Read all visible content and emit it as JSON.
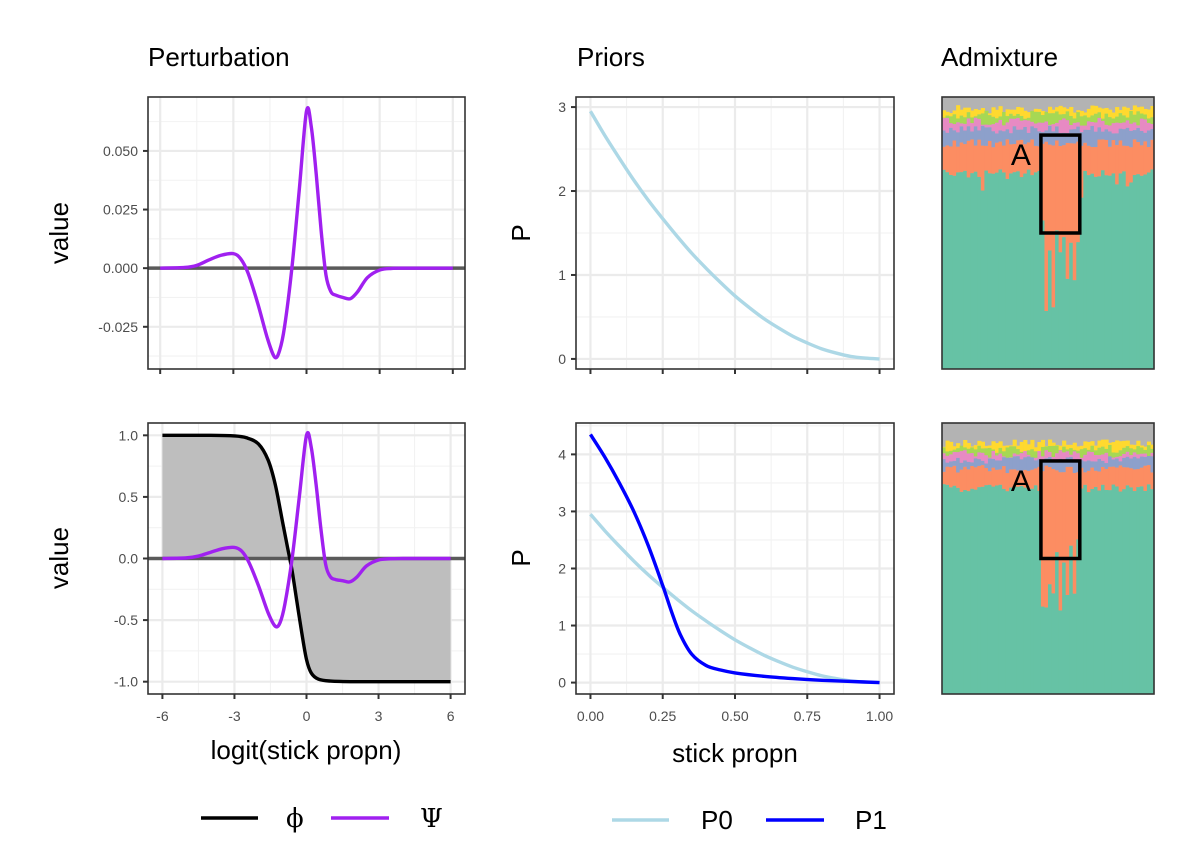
{
  "column_titles": {
    "perturbation": "Perturbation",
    "priors": "Priors",
    "admixture": "Admixture"
  },
  "axis_titles": {
    "value_top": "value",
    "value_bottom": "value",
    "p_top": "P",
    "p_bottom": "P",
    "x_left": "logit(stick propn)",
    "x_mid": "stick propn"
  },
  "legends": {
    "perturbation": [
      {
        "symbol": "ϕ",
        "color": "#000000"
      },
      {
        "symbol": "Ψ",
        "color": "#a020f0"
      }
    ],
    "priors": [
      {
        "label": "P0",
        "color": "#add8e6"
      },
      {
        "label": "P1",
        "color": "#0000ff"
      }
    ]
  },
  "annotation_label": "A",
  "chart_data": [
    {
      "id": "perturbation-top",
      "type": "line",
      "title": "",
      "xlabel": "",
      "ylabel": "value",
      "xlim": [
        -6.5,
        6.5
      ],
      "ylim": [
        -0.043,
        0.073
      ],
      "x_ticks": [
        -6,
        -3,
        0,
        3,
        6
      ],
      "x_tick_labels_shown": false,
      "y_ticks": [
        -0.025,
        0.0,
        0.025,
        0.05
      ],
      "y_tick_labels": [
        "-0.025",
        "0.000",
        "0.025",
        "0.050"
      ],
      "grid": true,
      "hline": 0,
      "series": [
        {
          "color": "#a020f0",
          "x": [
            -6,
            -5,
            -4.5,
            -4,
            -3.5,
            -3,
            -2.7,
            -2.4,
            -2,
            -1.6,
            -1.3,
            -1.1,
            -0.9,
            -0.6,
            -0.3,
            0,
            0.2,
            0.4,
            0.6,
            0.8,
            1.0,
            1.2,
            1.5,
            1.8,
            2.1,
            2.5,
            3,
            3.5,
            4,
            5,
            6
          ],
          "y": [
            0,
            0.0003,
            0.0012,
            0.0035,
            0.0055,
            0.0062,
            0.004,
            -0.002,
            -0.015,
            -0.03,
            -0.038,
            -0.035,
            -0.025,
            0.0,
            0.033,
            0.067,
            0.06,
            0.04,
            0.016,
            -0.003,
            -0.01,
            -0.0115,
            -0.0125,
            -0.013,
            -0.01,
            -0.004,
            -0.0008,
            -0.0001,
            0,
            0,
            0
          ]
        }
      ]
    },
    {
      "id": "perturbation-bottom",
      "type": "line",
      "title": "",
      "xlabel": "logit(stick propn)",
      "ylabel": "value",
      "xlim": [
        -6.6,
        6.6
      ],
      "ylim": [
        -1.1,
        1.1
      ],
      "x_ticks": [
        -6,
        -3,
        0,
        3,
        6
      ],
      "x_tick_labels": [
        "-6",
        "-3",
        "0",
        "3",
        "6"
      ],
      "y_ticks": [
        -1.0,
        -0.5,
        0.0,
        0.5,
        1.0
      ],
      "y_tick_labels": [
        "-1.0",
        "-0.5",
        "0.0",
        "0.5",
        "1.0"
      ],
      "grid": true,
      "hline": 0,
      "shaded_area": {
        "between": "phi_and_zero",
        "color": "#bebebe"
      },
      "series": [
        {
          "name": "ϕ",
          "color": "#000000",
          "x": [
            -6,
            -4,
            -3,
            -2.5,
            -2,
            -1.6,
            -1.3,
            -1.0,
            -0.8,
            -0.6,
            -0.4,
            -0.2,
            0,
            0.2,
            0.5,
            1.0,
            2,
            4,
            6
          ],
          "y": [
            1.0,
            1.0,
            0.995,
            0.98,
            0.93,
            0.8,
            0.6,
            0.3,
            0.1,
            -0.1,
            -0.35,
            -0.6,
            -0.82,
            -0.93,
            -0.98,
            -0.995,
            -1.0,
            -1.0,
            -1.0
          ]
        },
        {
          "name": "Ψ",
          "color": "#a020f0",
          "x": [
            -6,
            -5,
            -4.5,
            -4,
            -3.5,
            -3,
            -2.7,
            -2.4,
            -2,
            -1.6,
            -1.3,
            -1.1,
            -0.9,
            -0.6,
            -0.3,
            0,
            0.2,
            0.4,
            0.6,
            0.8,
            1.0,
            1.2,
            1.5,
            1.8,
            2.1,
            2.5,
            3,
            3.5,
            4,
            5,
            6
          ],
          "y": [
            0,
            0.005,
            0.02,
            0.05,
            0.08,
            0.09,
            0.06,
            -0.03,
            -0.22,
            -0.44,
            -0.55,
            -0.52,
            -0.37,
            0.0,
            0.5,
            1.0,
            0.9,
            0.6,
            0.24,
            -0.05,
            -0.15,
            -0.17,
            -0.18,
            -0.19,
            -0.15,
            -0.06,
            -0.012,
            -0.002,
            0,
            0,
            0
          ]
        }
      ]
    },
    {
      "id": "priors-top",
      "type": "line",
      "title": "",
      "xlabel": "",
      "ylabel": "P",
      "xlim": [
        -0.05,
        1.05
      ],
      "ylim": [
        -0.12,
        3.12
      ],
      "x_ticks": [
        0,
        0.25,
        0.5,
        0.75,
        1.0
      ],
      "x_tick_labels_shown": false,
      "y_ticks": [
        0,
        1,
        2,
        3
      ],
      "y_tick_labels": [
        "0",
        "1",
        "2",
        "3"
      ],
      "grid": true,
      "series": [
        {
          "name": "P0",
          "color": "#add8e6",
          "x": [
            0,
            0.05,
            0.1,
            0.15,
            0.2,
            0.25,
            0.3,
            0.35,
            0.4,
            0.45,
            0.5,
            0.55,
            0.6,
            0.65,
            0.7,
            0.75,
            0.8,
            0.85,
            0.9,
            0.95,
            1.0
          ],
          "y": [
            2.95,
            2.66,
            2.39,
            2.13,
            1.89,
            1.67,
            1.46,
            1.26,
            1.08,
            0.91,
            0.75,
            0.61,
            0.48,
            0.37,
            0.27,
            0.19,
            0.12,
            0.07,
            0.03,
            0.01,
            0.0
          ]
        }
      ]
    },
    {
      "id": "priors-bottom",
      "type": "line",
      "title": "",
      "xlabel": "stick propn",
      "ylabel": "P",
      "xlim": [
        -0.05,
        1.05
      ],
      "ylim": [
        -0.2,
        4.55
      ],
      "x_ticks": [
        0,
        0.25,
        0.5,
        0.75,
        1.0
      ],
      "x_tick_labels": [
        "0.00",
        "0.25",
        "0.50",
        "0.75",
        "1.00"
      ],
      "y_ticks": [
        0,
        1,
        2,
        3,
        4
      ],
      "y_tick_labels": [
        "0",
        "1",
        "2",
        "3",
        "4"
      ],
      "grid": true,
      "series": [
        {
          "name": "P0",
          "color": "#add8e6",
          "x": [
            0,
            0.05,
            0.1,
            0.15,
            0.2,
            0.25,
            0.3,
            0.35,
            0.4,
            0.45,
            0.5,
            0.55,
            0.6,
            0.65,
            0.7,
            0.75,
            0.8,
            0.85,
            0.9,
            0.95,
            1.0
          ],
          "y": [
            2.95,
            2.66,
            2.39,
            2.13,
            1.89,
            1.67,
            1.46,
            1.26,
            1.08,
            0.91,
            0.75,
            0.61,
            0.48,
            0.37,
            0.27,
            0.19,
            0.12,
            0.07,
            0.03,
            0.01,
            0.0
          ]
        },
        {
          "name": "P1",
          "color": "#0000ff",
          "x": [
            0,
            0.05,
            0.1,
            0.15,
            0.2,
            0.25,
            0.28,
            0.31,
            0.35,
            0.4,
            0.45,
            0.5,
            0.6,
            0.7,
            0.8,
            0.9,
            1.0
          ],
          "y": [
            4.35,
            3.95,
            3.5,
            3.0,
            2.4,
            1.7,
            1.25,
            0.85,
            0.5,
            0.3,
            0.22,
            0.17,
            0.11,
            0.07,
            0.04,
            0.02,
            0.0
          ]
        }
      ]
    },
    {
      "id": "admixture-top",
      "type": "area",
      "title": "",
      "stacked_bar_proportions": true,
      "bar_count": 60,
      "layers": [
        {
          "color": "#66c2a5",
          "base_top_fraction": 0.72
        },
        {
          "color": "#fc8d62",
          "base_top_fraction": 0.83
        },
        {
          "color": "#8da0cb",
          "base_top_fraction": 0.88
        },
        {
          "color": "#e78ac3",
          "base_top_fraction": 0.91
        },
        {
          "color": "#a6d854",
          "base_top_fraction": 0.935
        },
        {
          "color": "#ffd92f",
          "base_top_fraction": 0.955
        },
        {
          "color": "#b3b3b3",
          "base_top_fraction": 1.0
        }
      ],
      "highlight_box_bars": [
        28,
        38
      ],
      "highlight_box_y": [
        0.5,
        0.86
      ],
      "label": "A"
    },
    {
      "id": "admixture-bottom",
      "type": "area",
      "title": "",
      "stacked_bar_proportions": true,
      "bar_count": 60,
      "layers": [
        {
          "color": "#66c2a5",
          "base_top_fraction": 0.76
        },
        {
          "color": "#fc8d62",
          "base_top_fraction": 0.83
        },
        {
          "color": "#8da0cb",
          "base_top_fraction": 0.865
        },
        {
          "color": "#e78ac3",
          "base_top_fraction": 0.885
        },
        {
          "color": "#a6d854",
          "base_top_fraction": 0.905
        },
        {
          "color": "#ffd92f",
          "base_top_fraction": 0.925
        },
        {
          "color": "#b3b3b3",
          "base_top_fraction": 1.0
        }
      ],
      "highlight_box_bars": [
        28,
        38
      ],
      "highlight_box_y": [
        0.5,
        0.86
      ],
      "label": "A"
    }
  ]
}
